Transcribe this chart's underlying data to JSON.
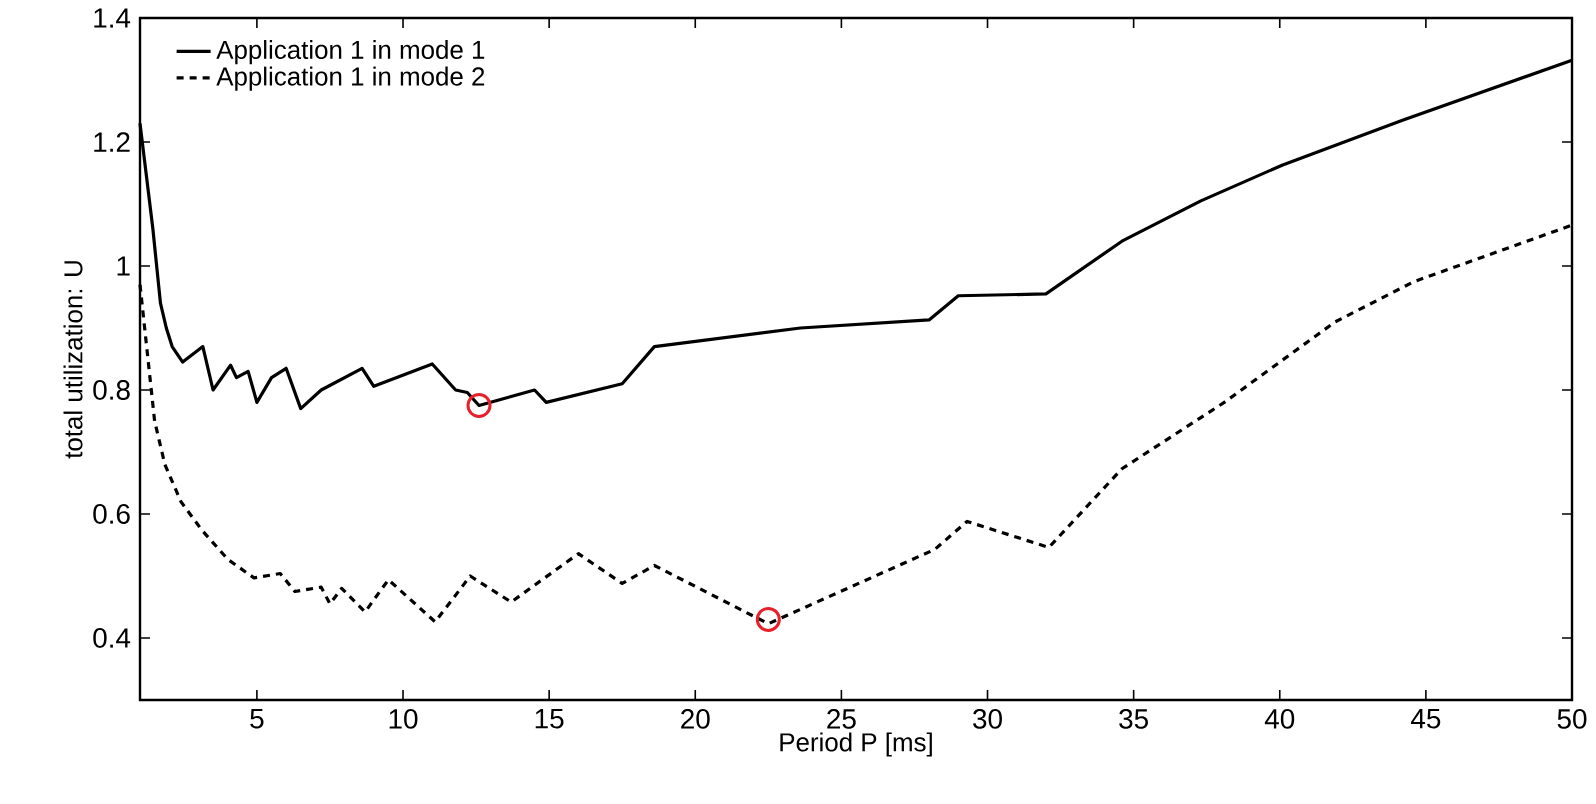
{
  "chart_data": {
    "type": "line",
    "xlabel": "Period P [ms]",
    "ylabel": "total utilization: U",
    "xlim": [
      1,
      50
    ],
    "ylim": [
      0.3,
      1.4
    ],
    "xticks": [
      5,
      10,
      15,
      20,
      25,
      30,
      35,
      40,
      45,
      50
    ],
    "yticks": [
      0.4,
      0.6,
      0.8,
      1,
      1.2,
      1.4
    ],
    "legend": "top left",
    "grid": false,
    "series": [
      {
        "name": "Application 1 in mode 1",
        "color": "#000000",
        "line_style": "solid",
        "x": [
          1,
          1.44,
          1.7,
          1.9,
          2.1,
          2.46,
          3.15,
          3.5,
          4.1,
          4.3,
          4.7,
          5,
          5.5,
          6,
          6.5,
          7.2,
          8.6,
          9,
          11,
          11.8,
          12.2,
          12.6,
          14.5,
          14.9,
          17.5,
          18.6,
          23.6,
          28,
          29,
          32,
          34.6,
          37.3,
          40.1,
          44.2,
          50
        ],
        "values": [
          1.23,
          1.06,
          0.94,
          0.9,
          0.87,
          0.845,
          0.87,
          0.8,
          0.84,
          0.82,
          0.83,
          0.78,
          0.82,
          0.835,
          0.77,
          0.8,
          0.835,
          0.806,
          0.842,
          0.8,
          0.796,
          0.775,
          0.8,
          0.78,
          0.81,
          0.87,
          0.9,
          0.913,
          0.952,
          0.955,
          1.04,
          1.105,
          1.163,
          1.235,
          1.332
        ]
      },
      {
        "name": "Application 1 in mode 2",
        "color": "#000000",
        "line_style": "dashed",
        "x": [
          1,
          1.5,
          1.85,
          2.4,
          3.1,
          4,
          4.9,
          5.8,
          6.3,
          7.2,
          7.5,
          7.9,
          8.7,
          9.5,
          11.1,
          12.3,
          13.7,
          16,
          17.5,
          18.6,
          22.5,
          28.2,
          29.3,
          32.1,
          34.6,
          38.1,
          41.9,
          44.6,
          50
        ],
        "values": [
          0.97,
          0.75,
          0.68,
          0.62,
          0.575,
          0.527,
          0.497,
          0.504,
          0.475,
          0.482,
          0.455,
          0.48,
          0.442,
          0.494,
          0.426,
          0.5,
          0.458,
          0.536,
          0.488,
          0.517,
          0.423,
          0.543,
          0.588,
          0.546,
          0.673,
          0.78,
          0.91,
          0.975,
          1.066
        ]
      },
      {
        "type": "scatter",
        "color": "#e8202a",
        "marker": "circle",
        "x": [
          12.6,
          22.5
        ],
        "values": [
          0.775,
          0.43
        ]
      }
    ]
  }
}
